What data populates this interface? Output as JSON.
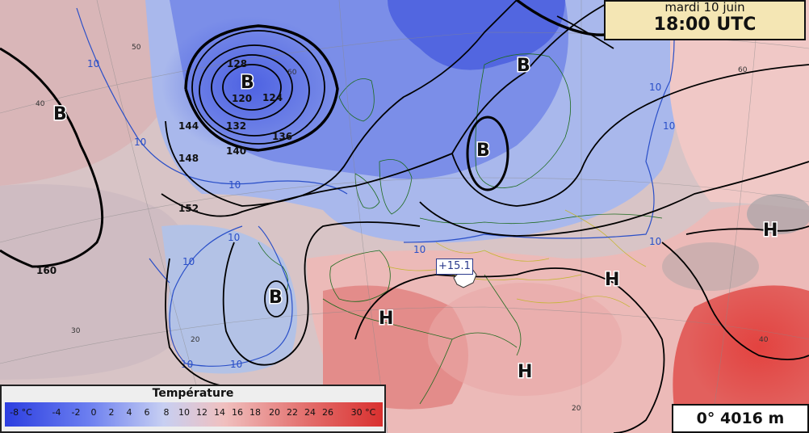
{
  "header": {
    "date": "mardi 10 juin",
    "time": "18:00 UTC"
  },
  "legend": {
    "title": "Température",
    "ticks": [
      "-8 °C",
      "-4",
      "-2",
      "0",
      "2",
      "4",
      "6",
      "8",
      "10",
      "12",
      "14",
      "16",
      "18",
      "20",
      "22",
      "24",
      "26",
      "30 °C"
    ]
  },
  "freezing_level": "0° 4016 m",
  "probe_value": "+15.1",
  "pressure_centers": {
    "low_north_atlantic": "B",
    "low_west_atlantic": "B",
    "low_scandinavia": "B",
    "low_baltic": "B",
    "low_iberia_west": "B",
    "high_iberia": "H",
    "high_balkans": "H",
    "high_east": "H",
    "high_italy": "H"
  },
  "isohypse_labels": [
    "128",
    "120",
    "124",
    "132",
    "136",
    "140",
    "144",
    "148",
    "152",
    "160"
  ],
  "isotherm_labels": [
    "10",
    "10",
    "10",
    "10",
    "10",
    "10",
    "10",
    "10",
    "10",
    "10",
    "10"
  ],
  "grid_labels": [
    "50",
    "40",
    "30",
    "20",
    "60",
    "60",
    "40",
    "20"
  ],
  "colors": {
    "cold": "#3a4fe0",
    "neutral": "#cbd2ea",
    "warm": "#e04a48",
    "contour": "#000000",
    "isotherm": "#2a4fc8"
  }
}
